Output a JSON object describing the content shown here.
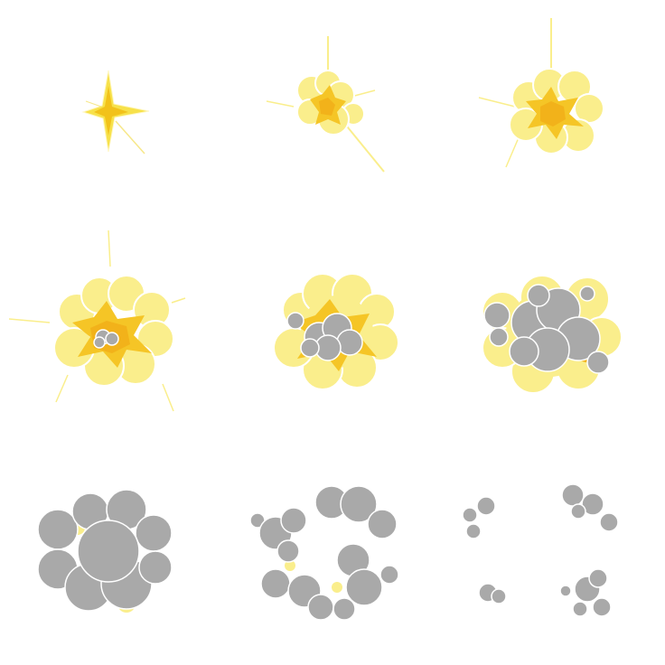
{
  "sprite_sheet": {
    "background": "#ffffff",
    "colors": {
      "flash_yellow": "#f7e14a",
      "pale_yellow": "#faee8c",
      "core_orange": "#f2b21a",
      "core_gold": "#f5c526",
      "smoke_gray": "#a9a9a9",
      "smoke_light": "#c4c4c4",
      "outline": "#ffffff"
    },
    "frames": [
      {
        "name": "spark",
        "kind": "flash"
      },
      {
        "name": "ignition",
        "kind": "burst-small"
      },
      {
        "name": "burst",
        "kind": "burst-medium"
      },
      {
        "name": "fireball",
        "kind": "fireball-first-smoke"
      },
      {
        "name": "fireball-smoke",
        "kind": "fireball-smoke"
      },
      {
        "name": "fire-smoke-mix",
        "kind": "fire-smoke-mix"
      },
      {
        "name": "smoke-cloud",
        "kind": "smoke-dense"
      },
      {
        "name": "smoke-ring",
        "kind": "smoke-breaking"
      },
      {
        "name": "smoke-dissipate",
        "kind": "smoke-puffs"
      }
    ]
  }
}
